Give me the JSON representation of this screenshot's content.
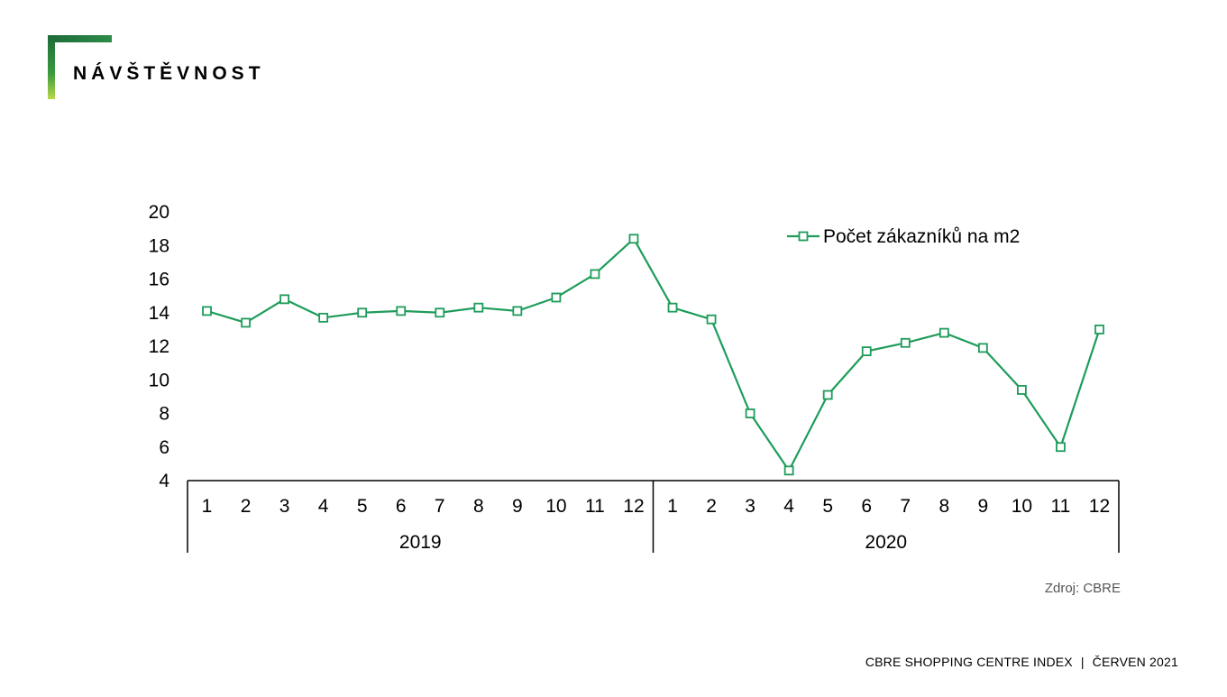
{
  "header": {
    "title": "NÁVŠTĚVNOST"
  },
  "source": "Zdroj: CBRE",
  "footer": {
    "left": "CBRE SHOPPING CENTRE INDEX",
    "separator": "|",
    "right": "ČERVEN 2021"
  },
  "colors": {
    "series": "#1e9c5a",
    "accent_dark": "#1d6b3a",
    "accent_light": "#b8d94a"
  },
  "chart_data": {
    "type": "line",
    "title": "",
    "xlabel": "",
    "ylabel": "",
    "ylim": [
      4,
      20
    ],
    "yticks": [
      4,
      6,
      8,
      10,
      12,
      14,
      16,
      18,
      20
    ],
    "legend_position": "top-right",
    "groups": [
      {
        "label": "2019",
        "categories": [
          "1",
          "2",
          "3",
          "4",
          "5",
          "6",
          "7",
          "8",
          "9",
          "10",
          "11",
          "12"
        ]
      },
      {
        "label": "2020",
        "categories": [
          "1",
          "2",
          "3",
          "4",
          "5",
          "6",
          "7",
          "8",
          "9",
          "10",
          "11",
          "12"
        ]
      }
    ],
    "series": [
      {
        "name": "Počet zákazníků na m2",
        "marker": "square",
        "values": [
          14.1,
          13.4,
          14.8,
          13.7,
          14.0,
          14.1,
          14.0,
          14.3,
          14.1,
          14.9,
          16.3,
          18.4,
          14.3,
          13.6,
          8.0,
          4.6,
          9.1,
          11.7,
          12.2,
          12.8,
          11.9,
          9.4,
          6.0,
          13.0
        ]
      }
    ]
  }
}
